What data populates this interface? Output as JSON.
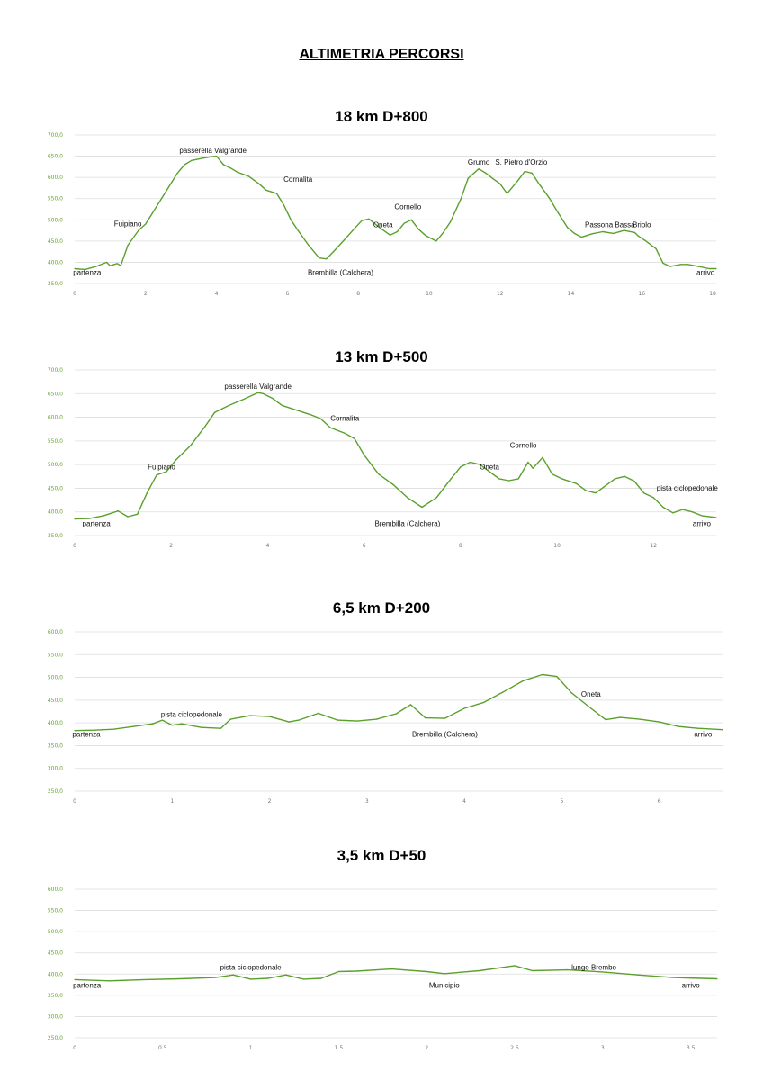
{
  "title": "ALTIMETRIA PERCORSI",
  "colors": {
    "line": "#5aa02c",
    "ytick": "#6aa335",
    "grid": "#dddddd"
  },
  "chart_data": [
    {
      "type": "line",
      "title": "18 km D+800",
      "ylim": [
        350,
        700
      ],
      "yticks": [
        "350,0",
        "400,0",
        "450,0",
        "500,0",
        "550,0",
        "600,0",
        "650,0",
        "700,0"
      ],
      "xlim": [
        0,
        18.1
      ],
      "xticks": [
        "0",
        "2",
        "4",
        "6",
        "8",
        "10",
        "12",
        "14",
        "16",
        "18"
      ],
      "grid": true,
      "x": [
        0,
        0.3,
        0.6,
        0.9,
        1.0,
        1.2,
        1.3,
        1.5,
        1.8,
        2.0,
        2.3,
        2.6,
        2.9,
        3.1,
        3.3,
        3.6,
        3.8,
        4.0,
        4.1,
        4.2,
        4.4,
        4.6,
        4.9,
        5.2,
        5.4,
        5.7,
        5.9,
        6.1,
        6.3,
        6.6,
        6.9,
        7.1,
        7.3,
        7.6,
        7.9,
        8.1,
        8.3,
        8.6,
        8.9,
        9.1,
        9.3,
        9.5,
        9.7,
        9.9,
        10.2,
        10.4,
        10.6,
        10.9,
        11.1,
        11.4,
        11.6,
        11.8,
        12.0,
        12.2,
        12.5,
        12.7,
        12.9,
        13.1,
        13.4,
        13.6,
        13.9,
        14.1,
        14.3,
        14.6,
        14.9,
        15.2,
        15.5,
        15.8,
        15.9,
        16.1,
        16.4,
        16.6,
        16.8,
        17.1,
        17.3,
        17.6,
        17.9,
        18.1
      ],
      "series": [
        {
          "values": [
            385,
            383,
            390,
            400,
            392,
            397,
            392,
            440,
            475,
            490,
            530,
            570,
            610,
            630,
            640,
            645,
            648,
            650,
            640,
            630,
            622,
            612,
            603,
            585,
            570,
            562,
            535,
            500,
            475,
            440,
            410,
            408,
            425,
            452,
            480,
            498,
            502,
            482,
            464,
            472,
            492,
            500,
            478,
            463,
            450,
            470,
            495,
            550,
            598,
            620,
            610,
            597,
            585,
            562,
            592,
            614,
            610,
            585,
            550,
            522,
            482,
            468,
            459,
            467,
            472,
            468,
            475,
            470,
            462,
            451,
            432,
            398,
            390,
            395,
            395,
            390,
            385,
            385
          ]
        }
      ],
      "annotations": [
        {
          "text": "passerella Valgrande",
          "x": 3.9,
          "y": 658
        },
        {
          "text": "Fuipiano",
          "x": 1.5,
          "y": 485
        },
        {
          "text": "Cornalita",
          "x": 6.3,
          "y": 590
        },
        {
          "text": "Cornello",
          "x": 9.4,
          "y": 525
        },
        {
          "text": "Oneta",
          "x": 8.7,
          "y": 483
        },
        {
          "text": "Grumo",
          "x": 11.4,
          "y": 630
        },
        {
          "text": "S. Pietro d'Orzio",
          "x": 12.6,
          "y": 630
        },
        {
          "text": "Passona Bassa",
          "x": 15.1,
          "y": 483
        },
        {
          "text": "Briolo",
          "x": 16.0,
          "y": 483
        },
        {
          "text": "partenza",
          "x": 0.35,
          "y": 370
        },
        {
          "text": "Brembilla (Calchera)",
          "x": 7.5,
          "y": 370
        },
        {
          "text": "arrivo",
          "x": 17.8,
          "y": 370
        }
      ]
    },
    {
      "type": "line",
      "title": "13 km D+500",
      "ylim": [
        350,
        700
      ],
      "yticks": [
        "350,0",
        "400,0",
        "450,0",
        "500,0",
        "550,0",
        "600,0",
        "650,0",
        "700,0"
      ],
      "xlim": [
        0,
        13.3
      ],
      "xticks": [
        "0",
        "2",
        "4",
        "6",
        "8",
        "10",
        "12"
      ],
      "grid": true,
      "x": [
        0,
        0.3,
        0.6,
        0.9,
        1.1,
        1.3,
        1.5,
        1.7,
        1.9,
        2.1,
        2.4,
        2.7,
        2.9,
        3.2,
        3.5,
        3.8,
        3.9,
        4.1,
        4.3,
        4.6,
        4.9,
        5.1,
        5.3,
        5.6,
        5.8,
        6.0,
        6.3,
        6.6,
        6.9,
        7.2,
        7.5,
        7.8,
        8.0,
        8.2,
        8.4,
        8.6,
        8.8,
        9.0,
        9.2,
        9.4,
        9.5,
        9.7,
        9.9,
        10.1,
        10.4,
        10.6,
        10.8,
        11.0,
        11.2,
        11.4,
        11.6,
        11.8,
        12.0,
        12.2,
        12.4,
        12.6,
        12.8,
        13.0,
        13.3
      ],
      "series": [
        {
          "values": [
            385,
            386,
            392,
            402,
            390,
            395,
            440,
            478,
            485,
            510,
            540,
            580,
            610,
            625,
            638,
            652,
            650,
            640,
            625,
            615,
            605,
            597,
            578,
            566,
            555,
            520,
            480,
            458,
            430,
            410,
            430,
            470,
            495,
            505,
            500,
            485,
            470,
            466,
            470,
            505,
            492,
            515,
            480,
            470,
            460,
            445,
            440,
            455,
            470,
            475,
            465,
            440,
            430,
            410,
            398,
            405,
            400,
            392,
            388
          ]
        }
      ],
      "annotations": [
        {
          "text": "passerella Valgrande",
          "x": 3.8,
          "y": 660
        },
        {
          "text": "Fuipiano",
          "x": 1.8,
          "y": 490
        },
        {
          "text": "Cornalita",
          "x": 5.6,
          "y": 593
        },
        {
          "text": "Cornello",
          "x": 9.3,
          "y": 535
        },
        {
          "text": "Oneta",
          "x": 8.6,
          "y": 490
        },
        {
          "text": "pista ciclopedonale",
          "x": 12.7,
          "y": 445
        },
        {
          "text": "partenza",
          "x": 0.45,
          "y": 370
        },
        {
          "text": "Brembilla (Calchera)",
          "x": 6.9,
          "y": 370
        },
        {
          "text": "arrivo",
          "x": 13.0,
          "y": 370
        }
      ]
    },
    {
      "type": "line",
      "title": "6,5 km D+200",
      "ylim": [
        250,
        600
      ],
      "yticks": [
        "250,0",
        "300,0",
        "350,0",
        "400,0",
        "450,0",
        "500,0",
        "550,0",
        "600,0"
      ],
      "xlim": [
        0,
        6.65
      ],
      "xticks": [
        "0",
        "1",
        "2",
        "3",
        "4",
        "5",
        "6"
      ],
      "grid": true,
      "x": [
        0,
        0.2,
        0.4,
        0.6,
        0.8,
        0.9,
        1.0,
        1.1,
        1.3,
        1.5,
        1.6,
        1.8,
        2.0,
        2.2,
        2.3,
        2.5,
        2.7,
        2.9,
        3.1,
        3.3,
        3.45,
        3.6,
        3.8,
        4.0,
        4.2,
        4.4,
        4.6,
        4.8,
        4.95,
        5.1,
        5.3,
        5.45,
        5.6,
        5.8,
        6.0,
        6.2,
        6.4,
        6.65
      ],
      "series": [
        {
          "values": [
            383,
            384,
            386,
            392,
            398,
            406,
            395,
            398,
            390,
            388,
            408,
            416,
            414,
            402,
            406,
            421,
            406,
            404,
            408,
            420,
            440,
            411,
            410,
            432,
            445,
            468,
            492,
            506,
            502,
            466,
            432,
            407,
            412,
            408,
            402,
            392,
            388,
            385
          ]
        }
      ],
      "annotations": [
        {
          "text": "pista ciclopedonale",
          "x": 1.2,
          "y": 413
        },
        {
          "text": "Oneta",
          "x": 5.3,
          "y": 458
        },
        {
          "text": "partenza",
          "x": 0.12,
          "y": 370
        },
        {
          "text": "Brembilla (Calchera)",
          "x": 3.8,
          "y": 370
        },
        {
          "text": "arrivo",
          "x": 6.45,
          "y": 370
        }
      ]
    },
    {
      "type": "line",
      "title": "3,5 km D+50",
      "ylim": [
        250,
        600
      ],
      "yticks": [
        "250,0",
        "300,0",
        "350,0",
        "400,0",
        "450,0",
        "500,0",
        "550,0",
        "600,0"
      ],
      "xlim": [
        0,
        3.65
      ],
      "xticks": [
        "0",
        "0.5",
        "1",
        "1.5",
        "2",
        "2.5",
        "3",
        "3.5"
      ],
      "grid": true,
      "x": [
        0,
        0.2,
        0.4,
        0.6,
        0.8,
        0.9,
        1.0,
        1.1,
        1.2,
        1.3,
        1.4,
        1.5,
        1.6,
        1.8,
        2.0,
        2.1,
        2.3,
        2.5,
        2.6,
        2.8,
        3.0,
        3.2,
        3.4,
        3.65
      ],
      "series": [
        {
          "values": [
            387,
            384,
            387,
            389,
            392,
            398,
            388,
            390,
            398,
            388,
            390,
            406,
            407,
            412,
            406,
            401,
            408,
            420,
            408,
            410,
            405,
            398,
            392,
            389
          ]
        }
      ],
      "annotations": [
        {
          "text": "pista ciclopedonale",
          "x": 1.0,
          "y": 410
        },
        {
          "text": "lungo Brembo",
          "x": 2.95,
          "y": 410
        },
        {
          "text": "partenza",
          "x": 0.07,
          "y": 368
        },
        {
          "text": "Municipio",
          "x": 2.1,
          "y": 368
        },
        {
          "text": "arrivo",
          "x": 3.5,
          "y": 368
        }
      ]
    }
  ]
}
